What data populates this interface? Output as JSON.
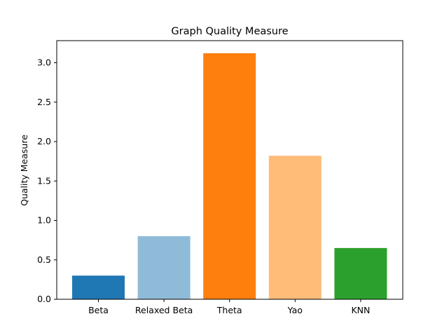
{
  "chart_data": {
    "type": "bar",
    "title": "Graph Quality Measure",
    "xlabel": "",
    "ylabel": "Quality Measure",
    "categories": [
      "Beta",
      "Relaxed Beta",
      "Theta",
      "Yao",
      "KNN"
    ],
    "values": [
      0.3,
      0.8,
      3.12,
      1.82,
      0.65
    ],
    "colors": [
      "#1f77b4",
      "#8fbbd9",
      "#ff7f0e",
      "#ffbb78",
      "#2ca02c"
    ],
    "ylim": [
      0,
      3.28
    ],
    "yticks": [
      0.0,
      0.5,
      1.0,
      1.5,
      2.0,
      2.5,
      3.0
    ],
    "ytick_labels": [
      "0.0",
      "0.5",
      "1.0",
      "1.5",
      "2.0",
      "2.5",
      "3.0"
    ],
    "grid": false,
    "legend": "none"
  }
}
